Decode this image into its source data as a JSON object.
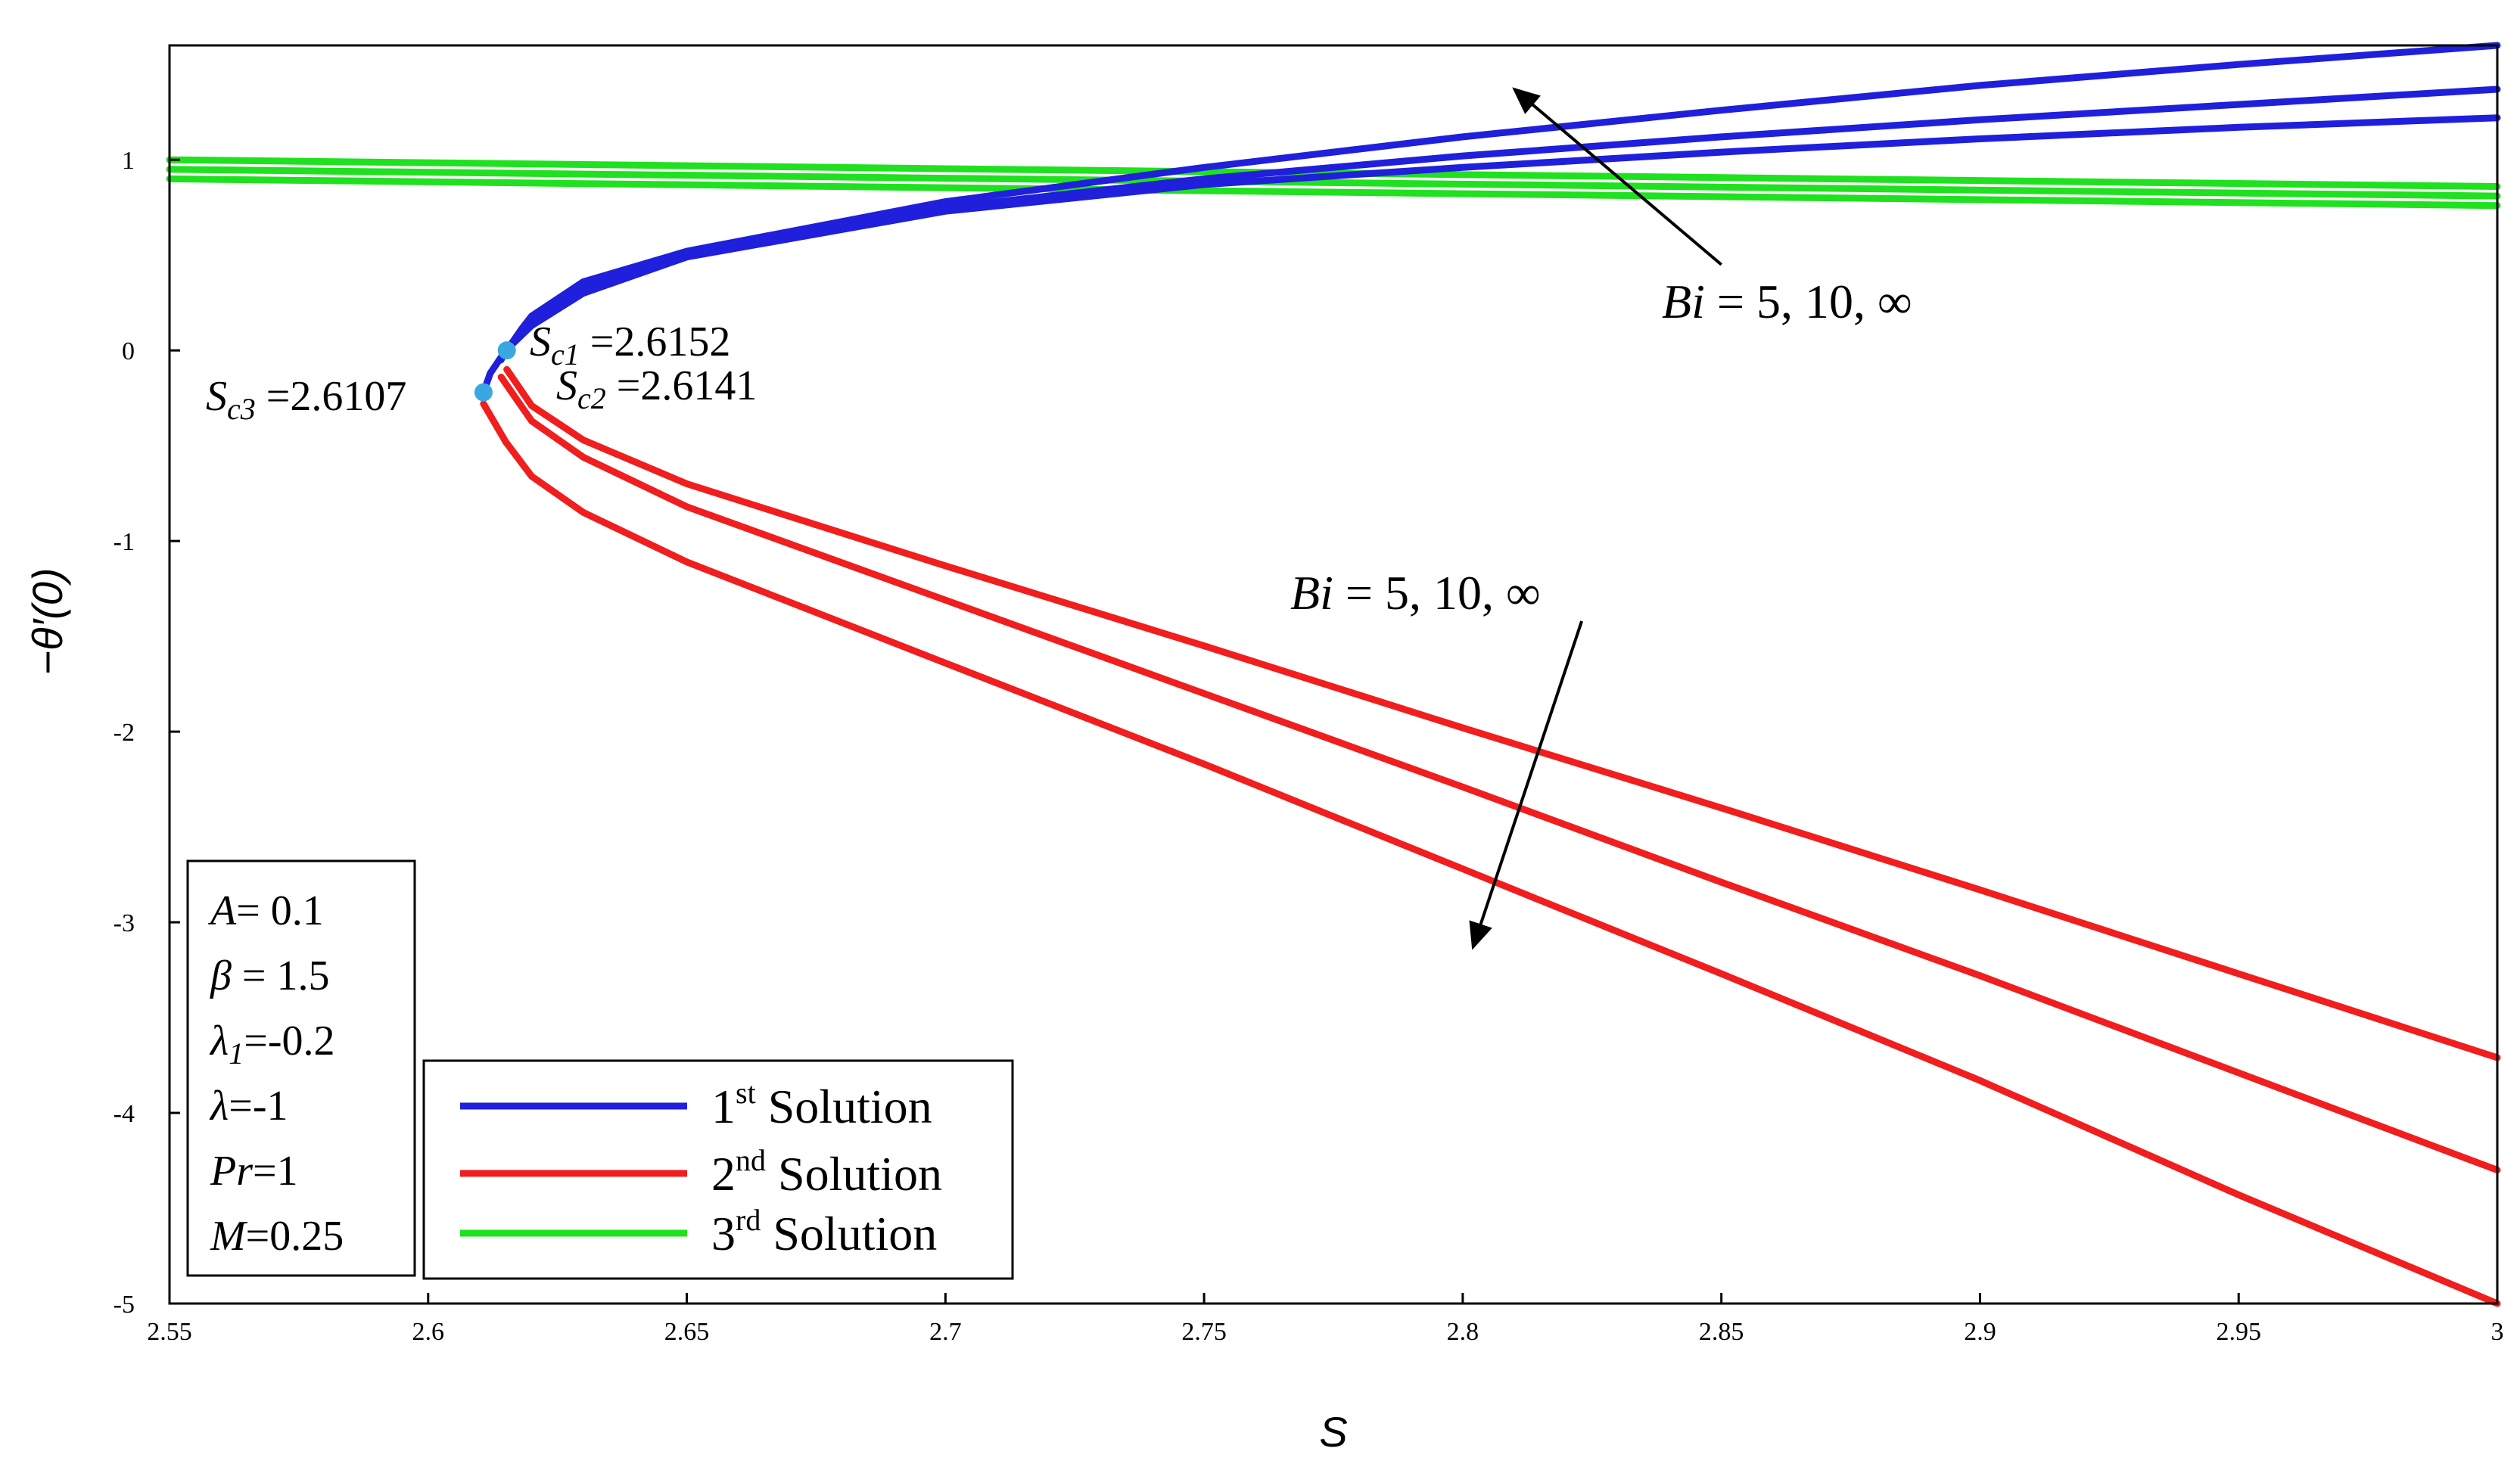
{
  "chart_data": {
    "type": "line",
    "title": "",
    "xlabel": "S",
    "ylabel": "−θ′(0)",
    "xlim": [
      2.55,
      3.0
    ],
    "ylim": [
      -5,
      1.6
    ],
    "grid": false,
    "x_ticks": [
      "2.55",
      "2.6",
      "2.65",
      "2.7",
      "2.75",
      "2.8",
      "2.85",
      "2.9",
      "2.95",
      "3"
    ],
    "y_ticks": [
      "1",
      "0",
      "-1",
      "-2",
      "-3",
      "-4",
      "-5"
    ],
    "colors": {
      "first": "#1f1fdc",
      "second": "#f01e1e",
      "third": "#1fe11f",
      "point": "#3aa7e0"
    },
    "series": [
      {
        "name": "1st Solution Bi=5",
        "group": "first",
        "x": [
          2.6107,
          2.612,
          2.615,
          2.62,
          2.63,
          2.65,
          2.7,
          2.75,
          2.8,
          2.85,
          2.9,
          2.95,
          3.0
        ],
        "y": [
          -0.22,
          -0.12,
          0.0,
          0.13,
          0.3,
          0.49,
          0.73,
          0.87,
          0.96,
          1.04,
          1.11,
          1.17,
          1.22
        ]
      },
      {
        "name": "1st Solution Bi=10",
        "group": "first",
        "x": [
          2.6141,
          2.615,
          2.618,
          2.62,
          2.63,
          2.65,
          2.7,
          2.75,
          2.8,
          2.85,
          2.9,
          2.95,
          3.0
        ],
        "y": [
          -0.05,
          0.0,
          0.09,
          0.16,
          0.33,
          0.5,
          0.75,
          0.9,
          1.02,
          1.12,
          1.21,
          1.29,
          1.37
        ]
      },
      {
        "name": "1st Solution Bi=inf",
        "group": "first",
        "x": [
          2.6152,
          2.618,
          2.62,
          2.63,
          2.65,
          2.7,
          2.75,
          2.8,
          2.85,
          2.9,
          2.95,
          3.0
        ],
        "y": [
          0.0,
          0.11,
          0.18,
          0.36,
          0.52,
          0.78,
          0.96,
          1.12,
          1.26,
          1.39,
          1.5,
          1.6
        ]
      },
      {
        "name": "2nd Solution Bi=inf",
        "group": "second",
        "x": [
          2.6152,
          2.62,
          2.63,
          2.65,
          2.7,
          2.75,
          2.8,
          2.85,
          2.9,
          2.95,
          3.0
        ],
        "y": [
          -0.1,
          -0.29,
          -0.47,
          -0.7,
          -1.13,
          -1.55,
          -1.98,
          -2.4,
          -2.83,
          -3.27,
          -3.71
        ]
      },
      {
        "name": "2nd Solution Bi=10",
        "group": "second",
        "x": [
          2.6141,
          2.62,
          2.63,
          2.65,
          2.7,
          2.75,
          2.8,
          2.85,
          2.9,
          2.95,
          3.0
        ],
        "y": [
          -0.14,
          -0.37,
          -0.56,
          -0.82,
          -1.31,
          -1.8,
          -2.29,
          -2.79,
          -3.28,
          -3.79,
          -4.3
        ]
      },
      {
        "name": "2nd Solution Bi=5",
        "group": "second",
        "x": [
          2.6107,
          2.615,
          2.62,
          2.63,
          2.65,
          2.7,
          2.75,
          2.8,
          2.85,
          2.9,
          2.95,
          3.0
        ],
        "y": [
          -0.28,
          -0.48,
          -0.66,
          -0.85,
          -1.11,
          -1.64,
          -2.17,
          -2.72,
          -3.27,
          -3.83,
          -4.43,
          -5.0
        ]
      },
      {
        "name": "3rd Solution Bi=inf",
        "group": "third",
        "x": [
          2.55,
          3.0
        ],
        "y": [
          1.0,
          0.86
        ]
      },
      {
        "name": "3rd Solution Bi=10",
        "group": "third",
        "x": [
          2.55,
          3.0
        ],
        "y": [
          0.95,
          0.81
        ]
      },
      {
        "name": "3rd Solution Bi=5",
        "group": "third",
        "x": [
          2.55,
          3.0
        ],
        "y": [
          0.9,
          0.76
        ]
      }
    ],
    "critical_points": [
      {
        "sym": "S",
        "sub": "c3",
        "text": " =2.6107",
        "x": 2.6107,
        "y": -0.22
      },
      {
        "sym": "S",
        "sub": "c1",
        "text": " =2.6152",
        "x": 2.6152,
        "y": 0.0
      }
    ],
    "critical_label_c2": {
      "sym": "S",
      "sub": "c2",
      "text": " =2.6141"
    },
    "annotations": [
      {
        "sym": "Bi",
        "text": " = 5, 10, ∞",
        "from": [
          2.85,
          0.45
        ],
        "to": [
          2.81,
          1.37
        ]
      },
      {
        "sym": "Bi",
        "text": " = 5, 10, ∞",
        "from": [
          2.823,
          -1.42
        ],
        "to": [
          2.802,
          -3.13
        ]
      }
    ],
    "parameters": [
      {
        "sym": "A",
        "text": "= 0.1"
      },
      {
        "sym": "β",
        "text": " = 1.5"
      },
      {
        "sym": "λ",
        "sub": "1",
        "text": "=-0.2"
      },
      {
        "sym": "λ",
        "text": "=-1"
      },
      {
        "sym": "Pr",
        "text": "=1"
      },
      {
        "sym": "M",
        "text": "=0.25"
      }
    ],
    "legend": [
      {
        "ord": "1",
        "sup": "st",
        "label": " Solution",
        "group": "first"
      },
      {
        "ord": "2",
        "sup": "nd",
        "label": " Solution",
        "group": "second"
      },
      {
        "ord": "3",
        "sup": "rd",
        "label": " Solution",
        "group": "third"
      }
    ],
    "legend_position": "bottom-left"
  }
}
